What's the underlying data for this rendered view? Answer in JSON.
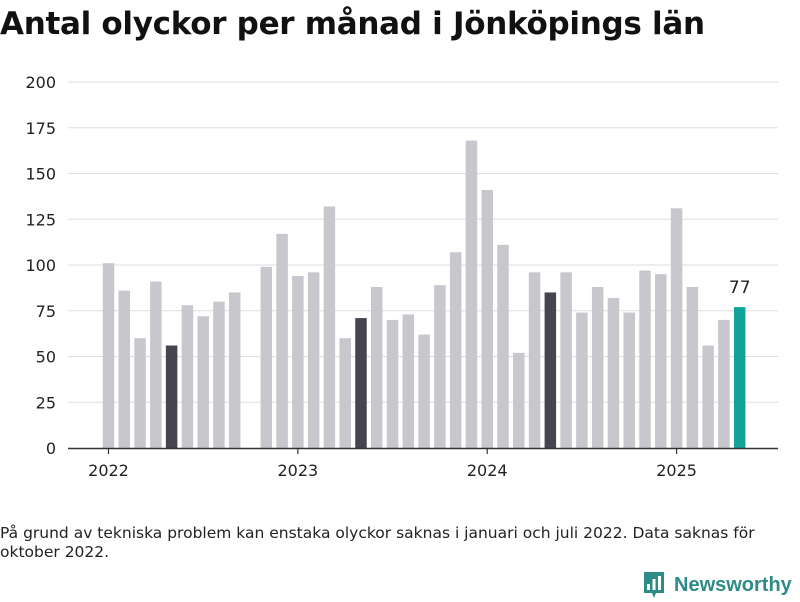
{
  "title": "Antal olyckor per månad i Jönköpings län",
  "note": "På grund av tekniska problem kan enstaka olyckor saknas i januari och juli 2022. Data saknas för oktober 2022.",
  "brand": {
    "name": "Newsworthy",
    "icon": "newsworthy-logo-icon"
  },
  "colors": {
    "default": "#c8c7ce",
    "highlight": "#45444f",
    "latest": "#14a39a",
    "grid": "#dddddd",
    "axis": "#333333",
    "text": "#222222"
  },
  "chart_data": {
    "type": "bar",
    "title": "Antal olyckor per månad i Jönköpings län",
    "xlabel": "",
    "ylabel": "",
    "ylim": [
      0,
      200
    ],
    "yticks": [
      0,
      25,
      50,
      75,
      100,
      125,
      150,
      175,
      200
    ],
    "grid": true,
    "x_tick_labels": [
      {
        "label": "2022",
        "date": "2022-01"
      },
      {
        "label": "2023",
        "date": "2023-01"
      },
      {
        "label": "2024",
        "date": "2024-01"
      },
      {
        "label": "2025",
        "date": "2025-01"
      }
    ],
    "bars": [
      {
        "date": "2022-01",
        "value": 101,
        "highlight": "default"
      },
      {
        "date": "2022-02",
        "value": 86,
        "highlight": "default"
      },
      {
        "date": "2022-03",
        "value": 60,
        "highlight": "default"
      },
      {
        "date": "2022-04",
        "value": 91,
        "highlight": "default"
      },
      {
        "date": "2022-05",
        "value": 56,
        "highlight": "dark"
      },
      {
        "date": "2022-06",
        "value": 78,
        "highlight": "default"
      },
      {
        "date": "2022-07",
        "value": 72,
        "highlight": "default"
      },
      {
        "date": "2022-08",
        "value": 80,
        "highlight": "default"
      },
      {
        "date": "2022-09",
        "value": 85,
        "highlight": "default"
      },
      {
        "date": "2022-10",
        "value": null,
        "highlight": "default"
      },
      {
        "date": "2022-11",
        "value": 99,
        "highlight": "default"
      },
      {
        "date": "2022-12",
        "value": 117,
        "highlight": "default"
      },
      {
        "date": "2023-01",
        "value": 94,
        "highlight": "default"
      },
      {
        "date": "2023-02",
        "value": 96,
        "highlight": "default"
      },
      {
        "date": "2023-03",
        "value": 132,
        "highlight": "default"
      },
      {
        "date": "2023-04",
        "value": 60,
        "highlight": "default"
      },
      {
        "date": "2023-05",
        "value": 71,
        "highlight": "dark"
      },
      {
        "date": "2023-06",
        "value": 88,
        "highlight": "default"
      },
      {
        "date": "2023-07",
        "value": 70,
        "highlight": "default"
      },
      {
        "date": "2023-08",
        "value": 73,
        "highlight": "default"
      },
      {
        "date": "2023-09",
        "value": 62,
        "highlight": "default"
      },
      {
        "date": "2023-10",
        "value": 89,
        "highlight": "default"
      },
      {
        "date": "2023-11",
        "value": 107,
        "highlight": "default"
      },
      {
        "date": "2023-12",
        "value": 168,
        "highlight": "default"
      },
      {
        "date": "2024-01",
        "value": 141,
        "highlight": "default"
      },
      {
        "date": "2024-02",
        "value": 111,
        "highlight": "default"
      },
      {
        "date": "2024-03",
        "value": 52,
        "highlight": "default"
      },
      {
        "date": "2024-04",
        "value": 96,
        "highlight": "default"
      },
      {
        "date": "2024-05",
        "value": 85,
        "highlight": "dark"
      },
      {
        "date": "2024-06",
        "value": 96,
        "highlight": "default"
      },
      {
        "date": "2024-07",
        "value": 74,
        "highlight": "default"
      },
      {
        "date": "2024-08",
        "value": 88,
        "highlight": "default"
      },
      {
        "date": "2024-09",
        "value": 82,
        "highlight": "default"
      },
      {
        "date": "2024-10",
        "value": 74,
        "highlight": "default"
      },
      {
        "date": "2024-11",
        "value": 97,
        "highlight": "default"
      },
      {
        "date": "2024-12",
        "value": 95,
        "highlight": "default"
      },
      {
        "date": "2025-01",
        "value": 131,
        "highlight": "default"
      },
      {
        "date": "2025-02",
        "value": 88,
        "highlight": "default"
      },
      {
        "date": "2025-03",
        "value": 56,
        "highlight": "default"
      },
      {
        "date": "2025-04",
        "value": 70,
        "highlight": "default"
      },
      {
        "date": "2025-05",
        "value": 77,
        "highlight": "latest"
      }
    ],
    "annotations": [
      {
        "date": "2025-05",
        "text": "77"
      }
    ]
  }
}
